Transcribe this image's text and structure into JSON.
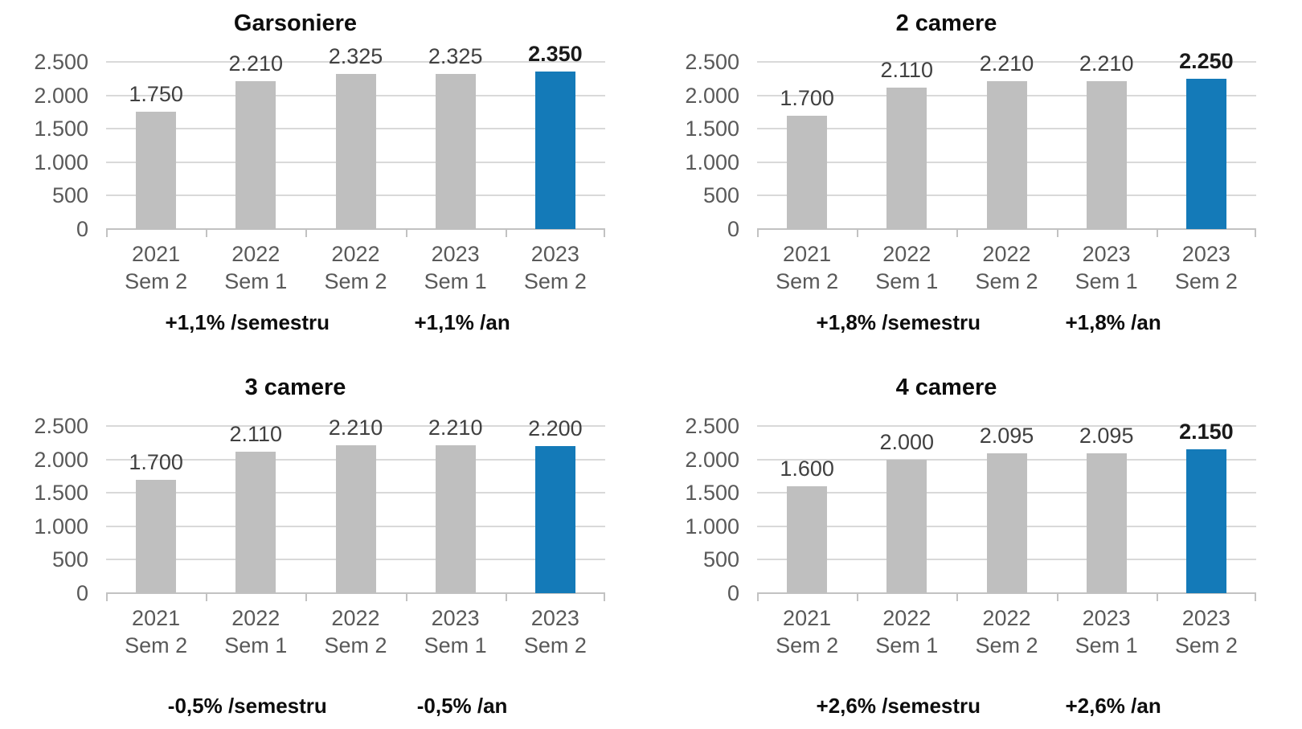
{
  "page": {
    "background": "#ffffff"
  },
  "colors": {
    "bar": "#BFBFBF",
    "highlight": "#147AB8",
    "gridline": "#D9D9D9",
    "axis_line": "#C2C2C2",
    "axis_text": "#595959",
    "value_label": "#404040",
    "value_label_final": "#1A1A1A",
    "title": "#0D0D0D",
    "annotation": "#0D0D0D"
  },
  "category_rows": [
    [
      "2021",
      "Sem 2"
    ],
    [
      "2022",
      "Sem 1"
    ],
    [
      "2022",
      "Sem 2"
    ],
    [
      "2023",
      "Sem 1"
    ],
    [
      "2023",
      "Sem 2"
    ]
  ],
  "chart_data": [
    {
      "type": "bar",
      "title": "Garsoniere",
      "categories": [
        "2021 Sem 2",
        "2022 Sem 1",
        "2022 Sem 2",
        "2023 Sem 1",
        "2023 Sem 2"
      ],
      "values": [
        1750,
        2210,
        2325,
        2325,
        2350
      ],
      "value_labels": [
        "1.750",
        "2.210",
        "2.325",
        "2.325",
        "2.350"
      ],
      "highlight_index": 4,
      "final_label_bold": true,
      "ylim": [
        0,
        2500
      ],
      "y_ticks": [
        0,
        500,
        1000,
        1500,
        2000,
        2500
      ],
      "y_tick_labels": [
        "0",
        "500",
        "1.000",
        "1.500",
        "2.000",
        "2.500"
      ],
      "grid": true,
      "legend": false,
      "annotations": [
        "+1,1% /semestru",
        "+1,1% /an"
      ]
    },
    {
      "type": "bar",
      "title": "2 camere",
      "categories": [
        "2021 Sem 2",
        "2022 Sem 1",
        "2022 Sem 2",
        "2023 Sem 1",
        "2023 Sem 2"
      ],
      "values": [
        1700,
        2110,
        2210,
        2210,
        2250
      ],
      "value_labels": [
        "1.700",
        "2.110",
        "2.210",
        "2.210",
        "2.250"
      ],
      "highlight_index": 4,
      "final_label_bold": true,
      "ylim": [
        0,
        2500
      ],
      "y_ticks": [
        0,
        500,
        1000,
        1500,
        2000,
        2500
      ],
      "y_tick_labels": [
        "0",
        "500",
        "1.000",
        "1.500",
        "2.000",
        "2.500"
      ],
      "grid": true,
      "legend": false,
      "annotations": [
        "+1,8% /semestru",
        "+1,8% /an"
      ]
    },
    {
      "type": "bar",
      "title": "3 camere",
      "categories": [
        "2021 Sem 2",
        "2022 Sem 1",
        "2022 Sem 2",
        "2023 Sem 1",
        "2023 Sem 2"
      ],
      "values": [
        1700,
        2110,
        2210,
        2210,
        2200
      ],
      "value_labels": [
        "1.700",
        "2.110",
        "2.210",
        "2.210",
        "2.200"
      ],
      "highlight_index": 4,
      "final_label_bold": false,
      "ylim": [
        0,
        2500
      ],
      "y_ticks": [
        0,
        500,
        1000,
        1500,
        2000,
        2500
      ],
      "y_tick_labels": [
        "0",
        "500",
        "1.000",
        "1.500",
        "2.000",
        "2.500"
      ],
      "grid": true,
      "legend": false,
      "annotations": [
        "-0,5% /semestru",
        "-0,5% /an"
      ]
    },
    {
      "type": "bar",
      "title": "4 camere",
      "categories": [
        "2021 Sem 2",
        "2022 Sem 1",
        "2022 Sem 2",
        "2023 Sem 1",
        "2023 Sem 2"
      ],
      "values": [
        1600,
        2000,
        2095,
        2095,
        2150
      ],
      "value_labels": [
        "1.600",
        "2.000",
        "2.095",
        "2.095",
        "2.150"
      ],
      "highlight_index": 4,
      "final_label_bold": true,
      "ylim": [
        0,
        2500
      ],
      "y_ticks": [
        0,
        500,
        1000,
        1500,
        2000,
        2500
      ],
      "y_tick_labels": [
        "0",
        "500",
        "1.000",
        "1.500",
        "2.000",
        "2.500"
      ],
      "grid": true,
      "legend": false,
      "annotations": [
        "+2,6% /semestru",
        "+2,6% /an"
      ]
    }
  ]
}
